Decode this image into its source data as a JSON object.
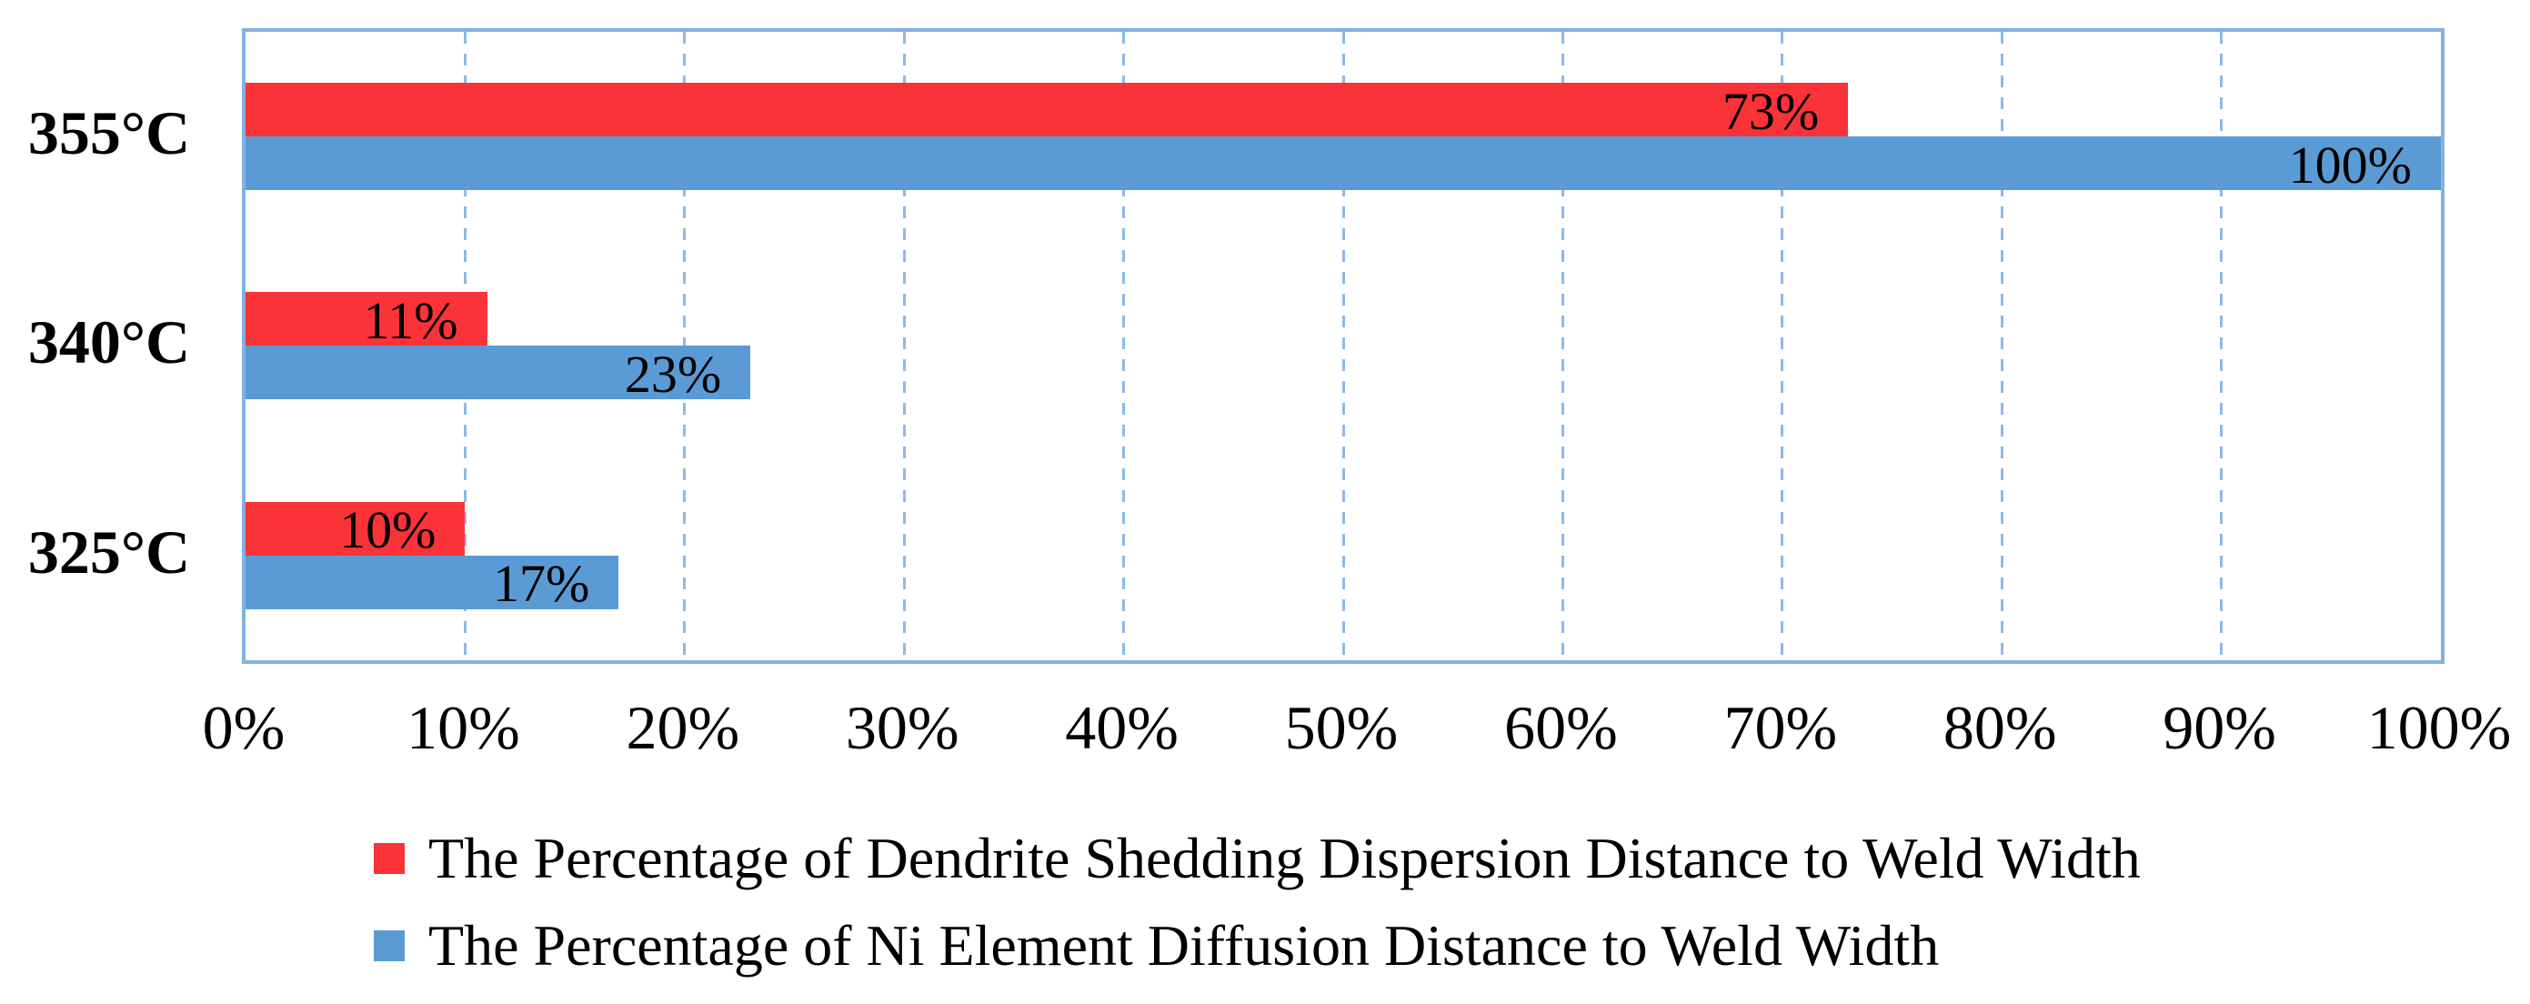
{
  "chart_data": {
    "type": "bar",
    "orientation": "horizontal",
    "title": "",
    "xlabel": "",
    "ylabel": "",
    "categories": [
      "355°C",
      "340°C",
      "325°C"
    ],
    "series": [
      {
        "name": "The Percentage of Dendrite Shedding Dispersion Distance to Weld Width",
        "color": "#FA3338",
        "values": [
          73,
          11,
          10
        ],
        "data_labels": [
          "73%",
          "11%",
          "10%"
        ]
      },
      {
        "name": "The Percentage of Ni Element Diffusion Distance to Weld Width",
        "color": "#5B9BD5",
        "values": [
          100,
          23,
          17
        ],
        "data_labels": [
          "100%",
          "23%",
          "17%"
        ]
      }
    ],
    "x_axis": {
      "min": 0,
      "max": 100,
      "step": 10,
      "ticks": [
        "0%",
        "10%",
        "20%",
        "30%",
        "40%",
        "50%",
        "60%",
        "70%",
        "80%",
        "90%",
        "100%"
      ]
    },
    "grid": "vertical-dashed",
    "gridline_color": "#8CBAE8",
    "plot_border_color": "#84B1DF",
    "legend_position": "bottom-left",
    "data_label_position": "inside-end",
    "data_label_color": "#000000"
  }
}
